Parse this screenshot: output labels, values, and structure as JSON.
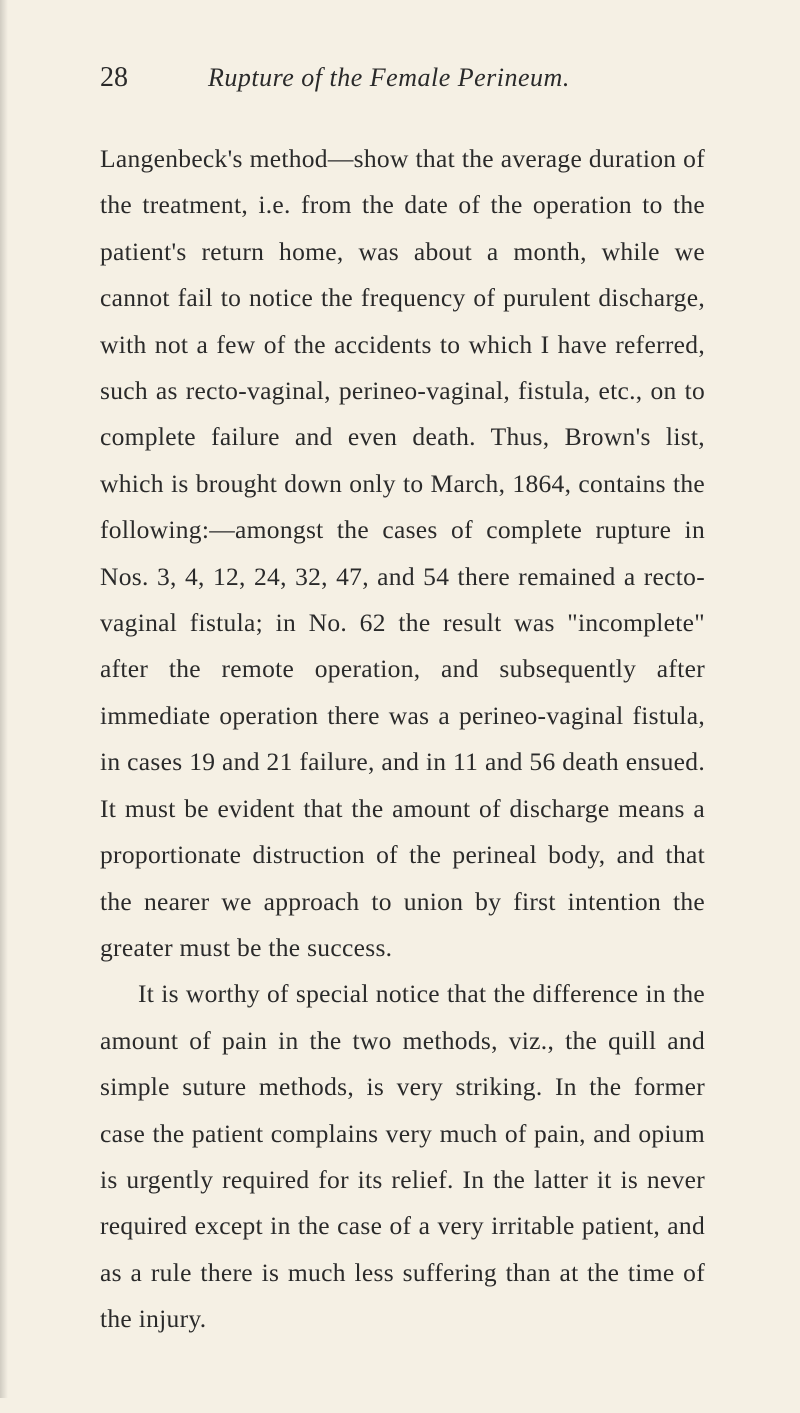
{
  "page": {
    "number": "28",
    "title": "Rupture of the Female Perineum.",
    "paragraph1": "Langenbeck's method—show that the average dura­tion of the treatment, i.e. from the date of the opera­tion to the patient's return home, was about a month, while we cannot fail to notice the frequency of purulent discharge, with not a few of the accidents to which I have referred, such as recto-vaginal, perineo-vaginal, fistula, etc., on to complete failure and even death. Thus, Brown's list, which is brought down only to March, 1864, contains the following:—amongst the cases of complete rupture in Nos. 3, 4, 12, 24, 32, 47, and 54 there remained a recto-vaginal fistula; in No. 62 the result was \"incomplete\" after the remote operation, and sub­sequently after immediate operation there was a perineo-vaginal fistula, in cases 19 and 21 failure, and in 11 and 56 death ensued. It must be evident that the amount of discharge means a proportionate dis­truction of the perineal body, and that the nearer we approach to union by first intention the greater must be the success.",
    "paragraph2": "It is worthy of special notice that the difference in the amount of pain in the two methods, viz., the quill and simple suture methods, is very striking. In the former case the patient complains very much of pain, and opium is urgently required for its relief. In the latter it is never required except in the case of a very irritable patient, and as a rule there is much less suffering than at the time of the injury."
  },
  "colors": {
    "background": "#f5f0e4",
    "text": "#2a2a2a"
  },
  "typography": {
    "page_number_size": 28,
    "title_size": 26,
    "body_size": 25.5,
    "line_height": 1.82
  }
}
